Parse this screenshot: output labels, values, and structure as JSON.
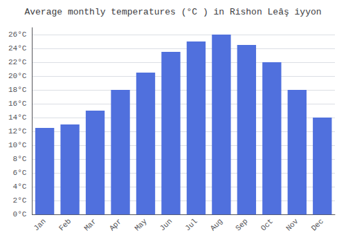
{
  "chart_data": {
    "type": "bar",
    "title": "Average monthly temperatures (°C ) in Rishon Leâş iyyon",
    "categories": [
      "Jan",
      "Feb",
      "Mar",
      "Apr",
      "May",
      "Jun",
      "Jul",
      "Aug",
      "Sep",
      "Oct",
      "Nov",
      "Dec"
    ],
    "values": [
      12.5,
      13.0,
      15.0,
      18.0,
      20.5,
      23.5,
      25.0,
      26.0,
      24.5,
      22.0,
      18.0,
      14.0
    ],
    "ylim": [
      0,
      27
    ],
    "yticks": [
      {
        "value": 0,
        "label": "0°C"
      },
      {
        "value": 2,
        "label": "2°C"
      },
      {
        "value": 4,
        "label": "4°C"
      },
      {
        "value": 6,
        "label": "6°C"
      },
      {
        "value": 8,
        "label": "8°C"
      },
      {
        "value": 10,
        "label": "10°C"
      },
      {
        "value": 12,
        "label": "12°C"
      },
      {
        "value": 14,
        "label": "14°C"
      },
      {
        "value": 16,
        "label": "16°C"
      },
      {
        "value": 18,
        "label": "18°C"
      },
      {
        "value": 20,
        "label": "20°C"
      },
      {
        "value": 22,
        "label": "22°C"
      },
      {
        "value": 24,
        "label": "24°C"
      },
      {
        "value": 26,
        "label": "26°C"
      }
    ],
    "grid": true
  }
}
